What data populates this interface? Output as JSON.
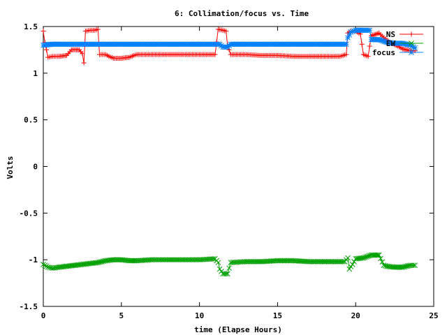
{
  "chart_data": {
    "type": "scatter",
    "title": "6: Collimation/focus vs. Time",
    "xlabel": "time (Elapse Hours)",
    "ylabel": "Volts",
    "xlim": [
      0,
      25
    ],
    "ylim": [
      -1.5,
      1.5
    ],
    "xticks": [
      "0",
      "5",
      "10",
      "15",
      "20",
      "25"
    ],
    "yticks": [
      "-1.5",
      "-1",
      "-0.5",
      "0",
      "0.5",
      "1",
      "1.5"
    ],
    "grid": false,
    "legend_position": "top-right",
    "series": [
      {
        "name": "NS",
        "color": "#ff0000",
        "marker": "plus",
        "points": [
          [
            0,
            1.45
          ],
          [
            0.1,
            1.33
          ],
          [
            0.2,
            1.25
          ],
          [
            0.3,
            1.17
          ],
          [
            0.6,
            1.18
          ],
          [
            1.0,
            1.18
          ],
          [
            1.5,
            1.19
          ],
          [
            1.8,
            1.25
          ],
          [
            2.3,
            1.25
          ],
          [
            2.5,
            1.21
          ],
          [
            2.6,
            1.11
          ],
          [
            2.7,
            1.45
          ],
          [
            3.0,
            1.46
          ],
          [
            3.3,
            1.46
          ],
          [
            3.5,
            1.47
          ],
          [
            3.6,
            1.2
          ],
          [
            4.0,
            1.2
          ],
          [
            4.2,
            1.18
          ],
          [
            4.5,
            1.16
          ],
          [
            5.0,
            1.16
          ],
          [
            5.5,
            1.17
          ],
          [
            5.8,
            1.19
          ],
          [
            6.0,
            1.2
          ],
          [
            7.0,
            1.2
          ],
          [
            8.0,
            1.2
          ],
          [
            9.0,
            1.2
          ],
          [
            10.0,
            1.2
          ],
          [
            11.0,
            1.2
          ],
          [
            11.2,
            1.47
          ],
          [
            11.5,
            1.46
          ],
          [
            11.7,
            1.45
          ],
          [
            11.8,
            1.3
          ],
          [
            12.0,
            1.2
          ],
          [
            13.0,
            1.2
          ],
          [
            14.0,
            1.19
          ],
          [
            15.0,
            1.19
          ],
          [
            16.0,
            1.18
          ],
          [
            17.0,
            1.18
          ],
          [
            18.0,
            1.18
          ],
          [
            19.0,
            1.18
          ],
          [
            19.4,
            1.2
          ],
          [
            19.5,
            1.43
          ],
          [
            19.7,
            1.45
          ],
          [
            20.0,
            1.45
          ],
          [
            20.3,
            1.42
          ],
          [
            20.5,
            1.2
          ],
          [
            20.8,
            1.18
          ],
          [
            21.0,
            1.4
          ],
          [
            21.5,
            1.43
          ],
          [
            21.8,
            1.38
          ],
          [
            22.2,
            1.33
          ],
          [
            22.7,
            1.29
          ],
          [
            23.0,
            1.26
          ],
          [
            23.5,
            1.24
          ],
          [
            23.8,
            1.24
          ]
        ]
      },
      {
        "name": "EW",
        "color": "#00a000",
        "marker": "cross",
        "points": [
          [
            0,
            -1.05
          ],
          [
            0.3,
            -1.08
          ],
          [
            0.6,
            -1.09
          ],
          [
            1.0,
            -1.08
          ],
          [
            1.5,
            -1.07
          ],
          [
            2.0,
            -1.06
          ],
          [
            2.5,
            -1.05
          ],
          [
            3.0,
            -1.04
          ],
          [
            3.5,
            -1.03
          ],
          [
            4.0,
            -1.01
          ],
          [
            4.5,
            -1.0
          ],
          [
            5.0,
            -1.0
          ],
          [
            5.5,
            -1.01
          ],
          [
            6.0,
            -1.01
          ],
          [
            7.0,
            -1.0
          ],
          [
            8.0,
            -1.0
          ],
          [
            9.0,
            -1.0
          ],
          [
            10.0,
            -1.0
          ],
          [
            11.0,
            -0.99
          ],
          [
            11.2,
            -1.03
          ],
          [
            11.3,
            -1.1
          ],
          [
            11.5,
            -1.15
          ],
          [
            11.8,
            -1.15
          ],
          [
            12.0,
            -1.03
          ],
          [
            13.0,
            -1.02
          ],
          [
            14.0,
            -1.02
          ],
          [
            15.0,
            -1.01
          ],
          [
            16.0,
            -1.01
          ],
          [
            17.0,
            -1.02
          ],
          [
            18.0,
            -1.02
          ],
          [
            19.0,
            -1.02
          ],
          [
            19.3,
            -1.02
          ],
          [
            19.5,
            -0.98
          ],
          [
            19.6,
            -1.1
          ],
          [
            19.8,
            -1.05
          ],
          [
            20.0,
            -0.99
          ],
          [
            20.5,
            -0.98
          ],
          [
            21.0,
            -0.95
          ],
          [
            21.5,
            -0.95
          ],
          [
            21.8,
            -1.06
          ],
          [
            22.0,
            -1.07
          ],
          [
            22.5,
            -1.08
          ],
          [
            23.0,
            -1.08
          ],
          [
            23.5,
            -1.06
          ],
          [
            23.8,
            -1.06
          ]
        ]
      },
      {
        "name": "focus",
        "color": "#0080ff",
        "marker": "star",
        "points": [
          [
            0,
            1.3
          ],
          [
            0.5,
            1.31
          ],
          [
            1.0,
            1.31
          ],
          [
            2.0,
            1.31
          ],
          [
            3.0,
            1.31
          ],
          [
            4.0,
            1.31
          ],
          [
            5.0,
            1.31
          ],
          [
            6.0,
            1.31
          ],
          [
            7.0,
            1.31
          ],
          [
            8.0,
            1.31
          ],
          [
            9.0,
            1.31
          ],
          [
            10.0,
            1.31
          ],
          [
            11.0,
            1.31
          ],
          [
            11.3,
            1.31
          ],
          [
            11.5,
            1.28
          ],
          [
            11.8,
            1.28
          ],
          [
            12.0,
            1.31
          ],
          [
            13.0,
            1.31
          ],
          [
            14.0,
            1.31
          ],
          [
            15.0,
            1.31
          ],
          [
            16.0,
            1.31
          ],
          [
            17.0,
            1.31
          ],
          [
            18.0,
            1.31
          ],
          [
            19.0,
            1.31
          ],
          [
            19.4,
            1.31
          ],
          [
            19.5,
            1.38
          ],
          [
            19.7,
            1.44
          ],
          [
            20.0,
            1.46
          ],
          [
            20.5,
            1.46
          ],
          [
            20.9,
            1.46
          ],
          [
            21.0,
            1.36
          ],
          [
            21.5,
            1.36
          ],
          [
            22.0,
            1.33
          ],
          [
            22.5,
            1.32
          ],
          [
            23.0,
            1.32
          ],
          [
            23.5,
            1.3
          ],
          [
            23.8,
            1.27
          ]
        ]
      }
    ]
  }
}
